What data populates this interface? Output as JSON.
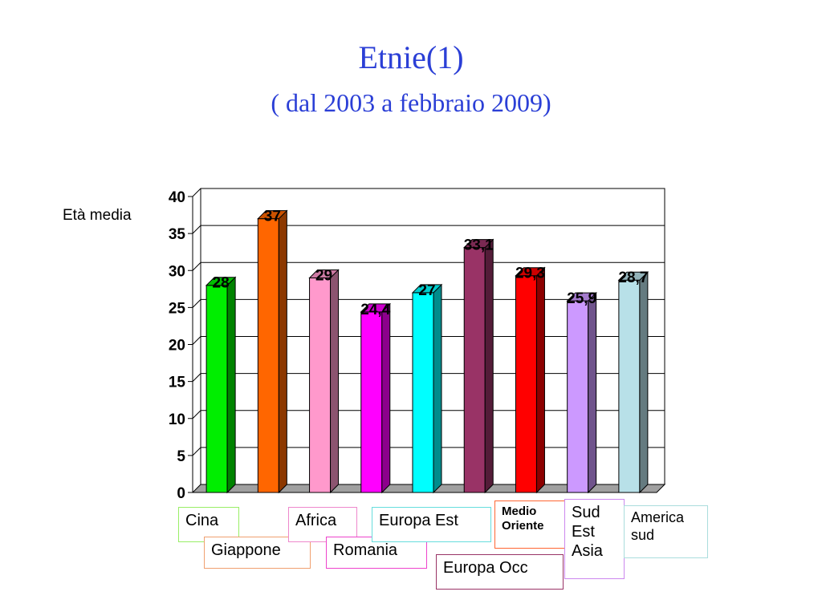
{
  "title": "Etnie(1)",
  "subtitle": "( dal 2003 a febbraio 2009)",
  "chart_data": {
    "type": "bar",
    "title": "Etnie(1)",
    "subtitle": "( dal 2003 a febbraio 2009)",
    "ylabel": "Età media",
    "ylim": [
      0,
      40
    ],
    "yticks": [
      "0",
      "5",
      "10",
      "15",
      "20",
      "25",
      "30",
      "35",
      "40"
    ],
    "grid": true,
    "categories": [
      "Cina",
      "Giappone",
      "Africa",
      "Romania",
      "Europa Est",
      "Europa Occ",
      "Medio Oriente",
      "Sud Est Asia",
      "America sud"
    ],
    "values": [
      28,
      37,
      29,
      24.4,
      27,
      33.1,
      29.3,
      25.9,
      28.7
    ],
    "data_labels": [
      "28",
      "37",
      "29",
      "24,4",
      "27",
      "33,1",
      "29,3",
      "25,9",
      "28,7"
    ],
    "colors": [
      "#00ee00",
      "#ff6600",
      "#ff99cc",
      "#ff00ff",
      "#00ffff",
      "#993366",
      "#ff0000",
      "#cc99ff",
      "#b8e0e8"
    ],
    "legend_lines": [
      [
        "Cina"
      ],
      [
        "Giappone"
      ],
      [
        "Africa"
      ],
      [
        "Romania"
      ],
      [
        "Europa Est"
      ],
      [
        "Europa Occ"
      ],
      [
        "Medio",
        "Oriente"
      ],
      [
        "Sud",
        "Est",
        "Asia"
      ],
      [
        "America",
        "sud"
      ]
    ],
    "legend_border_colors": [
      "#99ee66",
      "#f0a070",
      "#ee88cc",
      "#ee44cc",
      "#66dddd",
      "#993366",
      "#ff6633",
      "#cc88ee",
      "#aadddd"
    ]
  }
}
